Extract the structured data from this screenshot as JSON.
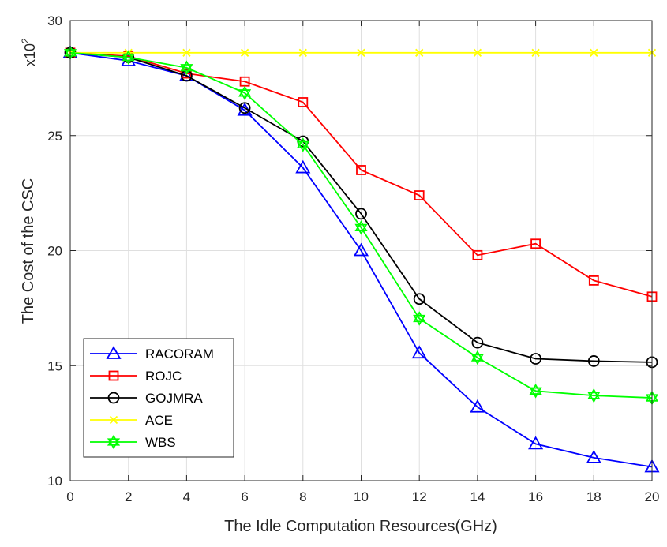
{
  "chart_data": {
    "type": "line",
    "xlabel": "The Idle Computation Resources(GHz)",
    "ylabel": "The Cost of the CSC",
    "y_multiplier": {
      "base": "x10",
      "exponent": "2"
    },
    "xlim": [
      0,
      20
    ],
    "ylim": [
      10,
      30
    ],
    "xticks": [
      0,
      2,
      4,
      6,
      8,
      10,
      12,
      14,
      16,
      18,
      20
    ],
    "yticks": [
      10,
      15,
      20,
      25,
      30
    ],
    "grid": true,
    "legend_position": "lower-left",
    "x": [
      0,
      2,
      4,
      6,
      8,
      10,
      12,
      14,
      16,
      18,
      20
    ],
    "series": [
      {
        "name": "RACORAM",
        "color": "#0000ff",
        "marker": "triangle",
        "values": [
          28.6,
          28.25,
          27.6,
          26.1,
          23.6,
          20.0,
          15.55,
          13.2,
          11.6,
          11.0,
          10.6
        ]
      },
      {
        "name": "ROJC",
        "color": "#ff0000",
        "marker": "square",
        "values": [
          28.6,
          28.45,
          27.7,
          27.35,
          26.45,
          23.5,
          22.4,
          19.8,
          20.3,
          18.7,
          18.0
        ]
      },
      {
        "name": "GOJMRA",
        "color": "#000000",
        "marker": "circle",
        "values": [
          28.6,
          28.4,
          27.6,
          26.2,
          24.75,
          21.6,
          17.9,
          16.0,
          15.3,
          15.2,
          15.15
        ]
      },
      {
        "name": "ACE",
        "color": "#ffff00",
        "marker": "x",
        "values": [
          28.6,
          28.6,
          28.6,
          28.6,
          28.6,
          28.6,
          28.6,
          28.6,
          28.6,
          28.6,
          28.6
        ]
      },
      {
        "name": "WBS",
        "color": "#00ff00",
        "marker": "hexagram",
        "values": [
          28.6,
          28.4,
          27.95,
          26.85,
          24.6,
          21.0,
          17.05,
          15.35,
          13.9,
          13.7,
          13.6
        ]
      }
    ]
  }
}
